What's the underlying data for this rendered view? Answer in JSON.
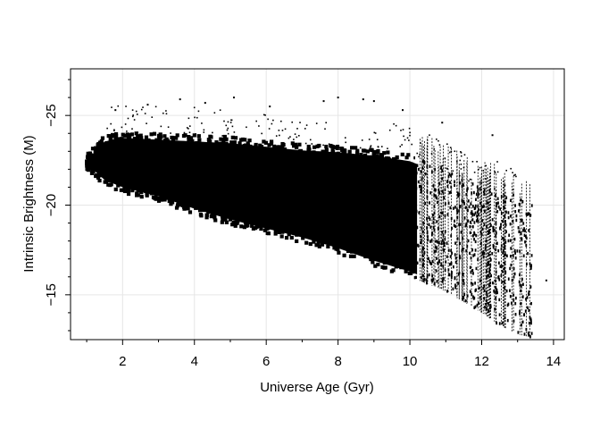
{
  "chart_data": {
    "type": "scatter",
    "xlabel": "Universe Age (Gyr)",
    "ylabel": "Intrinsic Brightness (M)",
    "xlim": [
      0.55,
      14.3
    ],
    "ylim": [
      -12.5,
      -27.6
    ],
    "y_inverted": true,
    "xticks": [
      2,
      4,
      6,
      8,
      10,
      12,
      14
    ],
    "xtick_labels": [
      "2",
      "4",
      "6",
      "8",
      "10",
      "12",
      "14"
    ],
    "yticks": [
      -25,
      -20,
      -15
    ],
    "ytick_labels": [
      "−25",
      "−20",
      "−15"
    ],
    "grid": true,
    "legend": "none",
    "point_color": "#000000",
    "grid_color": "#e6e6e6",
    "density_envelope": {
      "x": [
        1.0,
        1.5,
        2.0,
        3.0,
        4.0,
        5.0,
        6.0,
        7.0,
        8.0,
        9.0,
        10.0,
        10.5,
        11.0,
        11.5,
        12.0,
        12.5,
        13.0,
        13.4
      ],
      "bright_edge": [
        -22.8,
        -23.9,
        -24.1,
        -24.0,
        -23.9,
        -23.8,
        -23.6,
        -23.4,
        -23.3,
        -23.1,
        -22.8,
        -22.4,
        -22.0,
        -21.4,
        -21.0,
        -20.8,
        -20.5,
        -20.0
      ],
      "faint_edge": [
        -22.0,
        -21.1,
        -20.7,
        -20.2,
        -19.5,
        -18.9,
        -18.4,
        -17.9,
        -17.3,
        -16.6,
        -16.0,
        -15.6,
        -15.2,
        -14.6,
        -14.0,
        -13.3,
        -12.8,
        -12.6
      ]
    },
    "outliers": [
      {
        "x": 1.8,
        "y": -25.3
      },
      {
        "x": 2.7,
        "y": -25.6
      },
      {
        "x": 3.6,
        "y": -25.9
      },
      {
        "x": 4.3,
        "y": -25.7
      },
      {
        "x": 5.1,
        "y": -26.0
      },
      {
        "x": 6.1,
        "y": -25.5
      },
      {
        "x": 7.6,
        "y": -25.8
      },
      {
        "x": 8.0,
        "y": -26.0
      },
      {
        "x": 8.7,
        "y": -25.9
      },
      {
        "x": 9.0,
        "y": -25.8
      },
      {
        "x": 9.8,
        "y": -25.3
      },
      {
        "x": 10.9,
        "y": -24.6
      },
      {
        "x": 12.3,
        "y": -23.9
      },
      {
        "x": 13.8,
        "y": -15.8
      }
    ]
  }
}
